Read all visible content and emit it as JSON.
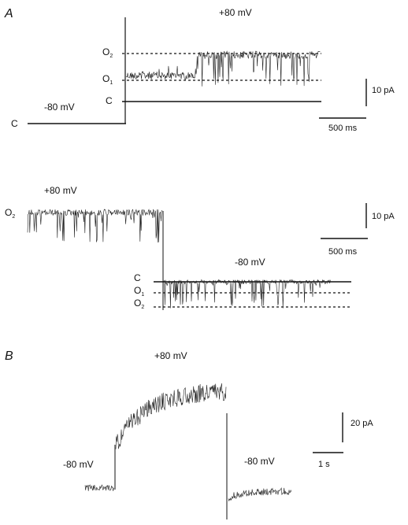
{
  "panel_a": {
    "label": "A",
    "trace1": {
      "voltage_hold": "-80 mV",
      "voltage_step": "+80 mV",
      "level_closed": "C",
      "level_closed_baseline": "C",
      "level_o1": "O",
      "level_o1_sub": "1",
      "level_o2": "O",
      "level_o2_sub": "2",
      "scale_current": "10 pA",
      "scale_time": "500 ms"
    },
    "trace2": {
      "voltage_step": "+80 mV",
      "voltage_hold": "-80 mV",
      "level_o2_left": "O",
      "level_o2_left_sub": "2",
      "level_closed": "C",
      "level_o1": "O",
      "level_o1_sub": "1",
      "level_o2": "O",
      "level_o2_sub": "2",
      "scale_current": "10 pA",
      "scale_time": "500 ms"
    }
  },
  "panel_b": {
    "label": "B",
    "voltage_step": "+80 mV",
    "voltage_hold_left": "-80 mV",
    "voltage_hold_right": "-80 mV",
    "scale_current": "20 pA",
    "scale_time": "1 s"
  }
}
